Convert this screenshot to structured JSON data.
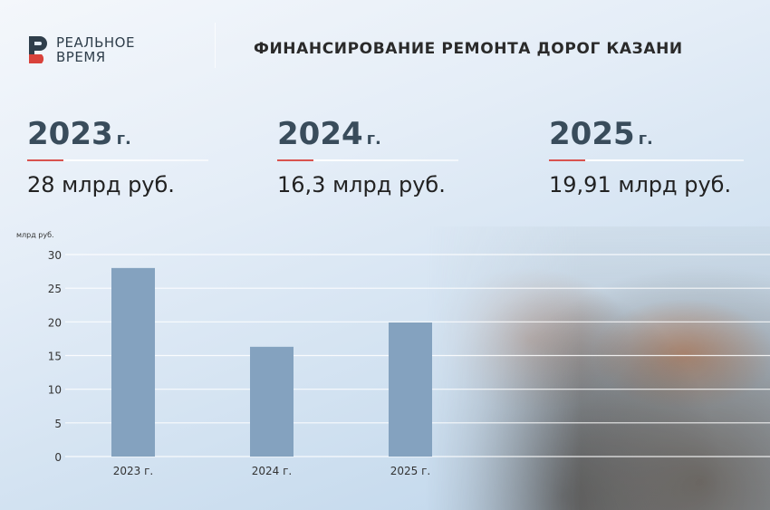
{
  "logo": {
    "line1": "РЕАЛЬНОЕ",
    "line2": "ВРЕМЯ",
    "colors": {
      "dark": "#2f3e4b",
      "red": "#d9423b"
    }
  },
  "title": "ФИНАНСИРОВАНИЕ РЕМОНТА ДОРОГ КАЗАНИ",
  "stats": [
    {
      "year": "2023",
      "suffix": "г.",
      "value": "28 млрд руб."
    },
    {
      "year": "2024",
      "suffix": "г.",
      "value": "16,3 млрд руб."
    },
    {
      "year": "2025",
      "suffix": "г.",
      "value": "19,91 млрд руб."
    }
  ],
  "chart_data": {
    "type": "bar",
    "ylabel": "млрд руб.",
    "categories": [
      "2023 г.",
      "2024 г.",
      "2025 г."
    ],
    "values": [
      28,
      16.3,
      19.91
    ],
    "ylim": [
      0,
      30
    ],
    "yticks": [
      0,
      5,
      10,
      15,
      20,
      25,
      30
    ],
    "grid": true,
    "bar_color": "#84a2bf"
  }
}
